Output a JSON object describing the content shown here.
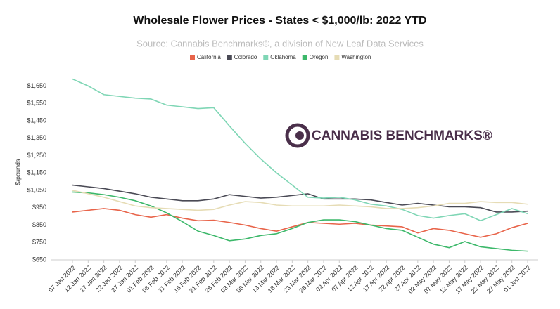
{
  "chart_data": {
    "type": "line",
    "title": "Wholesale Flower Prices - States < $1,000/lb: 2022 YTD",
    "subtitle": "Source: Cannabis Benchmarks®, a division of New Leaf Data Services",
    "watermark": "CANNABIS BENCHMARKS®",
    "y_label": "$/pounds",
    "categories": [
      "07 Jan 2022",
      "12 Jan 2022",
      "17 Jan 2022",
      "22 Jan 2022",
      "27 Jan 2022",
      "01 Feb 2022",
      "06 Feb 2022",
      "11 Feb 2022",
      "16 Feb 2022",
      "21 Feb 2022",
      "26 Feb 2022",
      "03 Mar 2022",
      "08 Mar 2022",
      "13 Mar 2022",
      "18 Mar 2022",
      "23 Mar 2022",
      "28 Mar 2022",
      "02 Apr 2022",
      "07 Apr 2022",
      "12 Apr 2022",
      "17 Apr 2022",
      "22 Apr 2022",
      "27 Apr 2022",
      "02 May 2022",
      "07 May 2022",
      "12 May 2022",
      "17 May 2022",
      "22 May 2022",
      "27 May 2022",
      "01 Jun 2022"
    ],
    "series": [
      {
        "name": "California",
        "color": "#e8644a",
        "values": [
          925,
          935,
          945,
          935,
          910,
          895,
          910,
          890,
          875,
          878,
          865,
          850,
          830,
          815,
          840,
          865,
          860,
          855,
          860,
          850,
          845,
          840,
          805,
          830,
          820,
          800,
          780,
          800,
          835,
          860
        ]
      },
      {
        "name": "Colorado",
        "color": "#4a4a55",
        "values": [
          1080,
          1070,
          1060,
          1045,
          1030,
          1010,
          1000,
          990,
          990,
          1000,
          1025,
          1015,
          1005,
          1010,
          1020,
          1030,
          1000,
          1000,
          1000,
          995,
          980,
          965,
          975,
          965,
          955,
          955,
          950,
          925,
          925,
          930
        ]
      },
      {
        "name": "Oklahoma",
        "color": "#7fd6b5",
        "values": [
          1690,
          1650,
          1600,
          1590,
          1580,
          1575,
          1540,
          1530,
          1520,
          1525,
          1420,
          1320,
          1230,
          1150,
          1080,
          1010,
          1005,
          1010,
          995,
          970,
          960,
          940,
          905,
          890,
          905,
          915,
          875,
          910,
          945,
          915
        ]
      },
      {
        "name": "Oregon",
        "color": "#3cb86a",
        "values": [
          1040,
          1035,
          1025,
          1010,
          990,
          960,
          920,
          870,
          815,
          790,
          760,
          770,
          790,
          800,
          830,
          865,
          880,
          880,
          870,
          850,
          830,
          820,
          780,
          740,
          720,
          755,
          725,
          715,
          705,
          700
        ]
      },
      {
        "name": "Washington",
        "color": "#e6dcb5",
        "values": [
          1050,
          1030,
          1010,
          985,
          960,
          950,
          945,
          940,
          935,
          940,
          965,
          985,
          980,
          965,
          960,
          960,
          960,
          965,
          960,
          955,
          945,
          945,
          950,
          960,
          975,
          975,
          985,
          980,
          980,
          970
        ]
      }
    ],
    "ylim": [
      650,
      1700
    ],
    "yticks": [
      {
        "value": 650,
        "label": "$650"
      },
      {
        "value": 750,
        "label": "$750"
      },
      {
        "value": 850,
        "label": "$850"
      },
      {
        "value": 950,
        "label": "$950"
      },
      {
        "value": 1050,
        "label": "$1,050"
      },
      {
        "value": 1150,
        "label": "$1,150"
      },
      {
        "value": 1250,
        "label": "$1,250"
      },
      {
        "value": 1350,
        "label": "$1,350"
      },
      {
        "value": 1450,
        "label": "$1,450"
      },
      {
        "value": 1550,
        "label": "$1,550"
      },
      {
        "value": 1650,
        "label": "$1,650"
      }
    ],
    "grid": false
  }
}
